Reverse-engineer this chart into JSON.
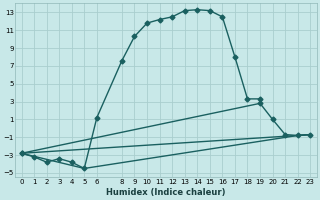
{
  "xlabel": "Humidex (Indice chaleur)",
  "background_color": "#c8e8e8",
  "grid_color": "#aacece",
  "line_color": "#1a6060",
  "xlim": [
    -0.5,
    23.5
  ],
  "ylim": [
    -5.5,
    14.0
  ],
  "xticks": [
    0,
    1,
    2,
    3,
    4,
    5,
    6,
    8,
    9,
    10,
    11,
    12,
    13,
    14,
    15,
    16,
    17,
    18,
    19,
    20,
    21,
    22,
    23
  ],
  "yticks": [
    -5,
    -3,
    -1,
    1,
    3,
    5,
    7,
    9,
    11,
    13
  ],
  "curve1": {
    "x": [
      0,
      1,
      2,
      3,
      4,
      5,
      6,
      8,
      9,
      10,
      11,
      12,
      13,
      14,
      15,
      16,
      17,
      18,
      19
    ],
    "y": [
      -2.8,
      -3.2,
      -3.8,
      -3.4,
      -3.8,
      -4.5,
      1.2,
      7.6,
      10.3,
      11.8,
      12.2,
      12.5,
      13.2,
      13.3,
      13.2,
      12.5,
      8.0,
      3.3,
      3.3
    ]
  },
  "line_diag1": {
    "x": [
      0,
      19,
      20,
      21,
      22,
      23
    ],
    "y": [
      -2.8,
      2.8,
      1.0,
      -0.7,
      -0.8,
      -0.7
    ]
  },
  "line_diag2": {
    "x": [
      0,
      22,
      23
    ],
    "y": [
      -2.8,
      -0.8,
      -0.7
    ]
  },
  "line_diag3": {
    "x": [
      0,
      5,
      22,
      23
    ],
    "y": [
      -2.8,
      -4.5,
      -0.8,
      -0.7
    ]
  }
}
